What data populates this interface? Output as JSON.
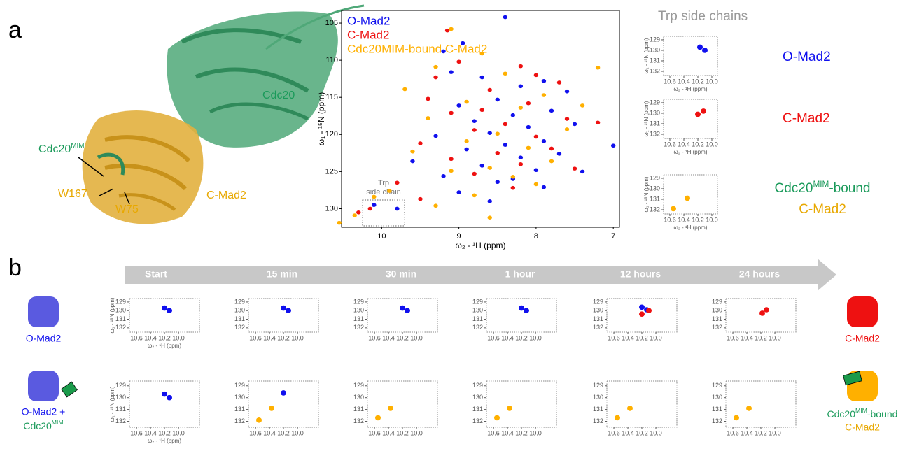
{
  "panel_labels": [
    "a",
    "b"
  ],
  "structure": {
    "cdc20": "Cdc20",
    "cdc20mim": [
      "Cdc20",
      "MIM"
    ],
    "w167": "W167",
    "w75": "W75",
    "cmad2": "C-Mad2"
  },
  "trp_title": "Trp side chains",
  "trp_labels": {
    "omad2": "O-Mad2",
    "cmad2": "C-Mad2",
    "bound": [
      "Cdc20",
      "MIM",
      "-bound"
    ],
    "bound2": "C-Mad2"
  },
  "timeline": {
    "labels": [
      "Start",
      "15 min",
      "30 min",
      "1 hour",
      "12 hours",
      "24 hours"
    ]
  },
  "row_labels": {
    "left1": "O-Mad2",
    "left2a": "O-Mad2 +",
    "left2b": [
      "Cdc20",
      "MIM"
    ],
    "right1": "C-Mad2",
    "right2a": [
      "Cdc20",
      "MIM",
      "-bound"
    ],
    "right2b": "C-Mad2"
  },
  "chart_data": [
    {
      "type": "scatter",
      "xlabel": "ω₂ - ¹H (ppm)",
      "ylabel": "ω₁ - ¹⁵N (ppm)",
      "annotation": [
        "Trp",
        "side chain"
      ],
      "xlim": [
        10.52,
        6.92
      ],
      "ylim": [
        132.5,
        103.3
      ],
      "xticks": [
        10,
        9,
        8,
        7
      ],
      "yticks": [
        105,
        110,
        115,
        120,
        125,
        130
      ],
      "series": [
        {
          "name": "O-Mad2",
          "color": "#1010ee",
          "x": [
            8.4,
            8.95,
            9.2,
            9.1,
            8.7,
            7.9,
            8.2,
            7.6,
            8.5,
            9.0,
            7.8,
            8.3,
            8.8,
            7.5,
            8.1,
            8.6,
            9.3,
            7.9,
            8.4,
            8.9,
            7.7,
            8.2,
            9.6,
            8.7,
            8.0,
            7.4,
            9.2,
            8.5,
            7.9,
            10.1,
            9.8,
            8.6,
            9.0,
            7.0,
            8.3
          ],
          "values": [
            104.2,
            107.7,
            108.8,
            111.6,
            112.3,
            112.8,
            113.5,
            114.2,
            115.3,
            116.1,
            116.8,
            117.4,
            118.2,
            118.6,
            119.0,
            119.8,
            120.2,
            120.9,
            121.4,
            122.0,
            122.6,
            123.1,
            123.6,
            124.2,
            124.8,
            125.0,
            125.6,
            126.4,
            127.1,
            129.5,
            130.0,
            129.0,
            127.8,
            121.5,
            126.0
          ]
        },
        {
          "name": "C-Mad2",
          "color": "#ee1111",
          "x": [
            9.15,
            9.0,
            8.2,
            9.3,
            7.7,
            8.6,
            8.1,
            9.1,
            7.6,
            8.4,
            8.8,
            8.0,
            9.5,
            7.8,
            8.5,
            9.1,
            8.2,
            7.5,
            8.8,
            9.8,
            8.3,
            9.5,
            10.15,
            10.3,
            7.2,
            8.7,
            8.0,
            9.4
          ],
          "values": [
            106.0,
            110.2,
            110.8,
            112.3,
            113.0,
            114.0,
            115.8,
            117.1,
            117.9,
            118.6,
            119.4,
            120.3,
            121.2,
            121.9,
            122.5,
            123.3,
            124.0,
            124.6,
            125.3,
            126.5,
            127.2,
            128.7,
            130.0,
            130.5,
            118.4,
            116.7,
            112.0,
            115.2
          ]
        },
        {
          "name": "Cdc20MIM-bound C-Mad2",
          "color": "#ffb000",
          "x": [
            9.1,
            8.7,
            9.3,
            8.4,
            7.9,
            8.9,
            8.2,
            9.4,
            7.6,
            8.5,
            8.9,
            8.1,
            9.6,
            7.8,
            8.6,
            9.1,
            8.3,
            9.9,
            8.8,
            10.35,
            10.55,
            9.3,
            7.4,
            10.1,
            8.0,
            7.2,
            9.7,
            8.6
          ],
          "values": [
            105.8,
            109.1,
            110.9,
            111.8,
            114.7,
            115.6,
            116.4,
            117.8,
            119.3,
            119.9,
            120.9,
            121.8,
            122.3,
            123.6,
            124.5,
            124.9,
            125.7,
            127.6,
            128.2,
            130.9,
            131.9,
            129.6,
            116.1,
            128.4,
            126.7,
            111.0,
            113.9,
            131.2
          ]
        }
      ]
    },
    {
      "type": "scatter",
      "xlabel": "ω₂ - ¹H (ppm)",
      "ylabel": "ω₁ - ¹⁵N (ppm)",
      "xlim": [
        10.69,
        9.92
      ],
      "ylim": [
        132.4,
        128.67
      ],
      "xticks": [
        10.6,
        10.4,
        10.2,
        {
          "value": 10,
          "label": "10.0"
        }
      ],
      "yticks": [
        129,
        130,
        131,
        132
      ],
      "series": [
        {
          "color": "#1010ee",
          "x": [
            10.17,
            10.1
          ],
          "values": [
            129.7,
            130.0
          ]
        }
      ]
    },
    {
      "type": "scatter",
      "xlabel": "ω₂ - ¹H (ppm)",
      "ylabel": "ω₁ - ¹⁵N (ppm)",
      "xlim": [
        10.69,
        9.92
      ],
      "ylim": [
        132.4,
        128.67
      ],
      "xticks": [
        10.6,
        10.4,
        10.2,
        {
          "value": 10,
          "label": "10.0"
        }
      ],
      "yticks": [
        129,
        130,
        131,
        132
      ],
      "series": [
        {
          "color": "#ee1111",
          "x": [
            10.12,
            10.2
          ],
          "values": [
            129.8,
            130.1
          ]
        }
      ]
    },
    {
      "type": "scatter",
      "xlabel": "ω₂ - ¹H (ppm)",
      "ylabel": "ω₁ - ¹⁵N (ppm)",
      "xlim": [
        10.69,
        9.92
      ],
      "ylim": [
        132.4,
        128.67
      ],
      "xticks": [
        10.6,
        10.4,
        10.2,
        {
          "value": 10,
          "label": "10.0"
        }
      ],
      "yticks": [
        129,
        130,
        131,
        132
      ],
      "series": [
        {
          "color": "#ffb000",
          "x": [
            10.35,
            10.55
          ],
          "values": [
            130.9,
            131.9
          ]
        }
      ]
    },
    {
      "type": "scatter",
      "xlabel": "ω₂ - ¹H (ppm)",
      "ylabel": "ω₁ - ¹⁵N (ppm)",
      "xlim": [
        10.7,
        9.7
      ],
      "ylim": [
        132.5,
        128.6
      ],
      "xticks": [
        10.6,
        10.4,
        10.2,
        {
          "value": 10,
          "label": "10.0"
        }
      ],
      "yticks": [
        129,
        130,
        131,
        132
      ],
      "series": [
        {
          "color": "#1010ee",
          "x": [
            10.2,
            10.13
          ],
          "values": [
            129.7,
            130.0
          ]
        }
      ]
    },
    {
      "type": "scatter",
      "xlim": [
        10.7,
        9.7
      ],
      "ylim": [
        132.5,
        128.6
      ],
      "xticks": [
        10.6,
        10.4,
        10.2,
        {
          "value": 10,
          "label": "10.0"
        }
      ],
      "yticks": [
        129,
        130,
        131,
        132
      ],
      "series": [
        {
          "color": "#1010ee",
          "x": [
            10.2,
            10.13
          ],
          "values": [
            129.7,
            130.0
          ]
        }
      ]
    },
    {
      "type": "scatter",
      "xlim": [
        10.7,
        9.7
      ],
      "ylim": [
        132.5,
        128.6
      ],
      "xticks": [
        10.6,
        10.4,
        10.2,
        {
          "value": 10,
          "label": "10.0"
        }
      ],
      "yticks": [
        129,
        130,
        131,
        132
      ],
      "series": [
        {
          "color": "#1010ee",
          "x": [
            10.2,
            10.13
          ],
          "values": [
            129.7,
            130.0
          ]
        }
      ]
    },
    {
      "type": "scatter",
      "xlim": [
        10.7,
        9.7
      ],
      "ylim": [
        132.5,
        128.6
      ],
      "xticks": [
        10.6,
        10.4,
        10.2,
        {
          "value": 10,
          "label": "10.0"
        }
      ],
      "yticks": [
        129,
        130,
        131,
        132
      ],
      "series": [
        {
          "color": "#1010ee",
          "x": [
            10.2,
            10.13
          ],
          "values": [
            129.7,
            130.0
          ]
        }
      ]
    },
    {
      "type": "scatter",
      "xlim": [
        10.7,
        9.7
      ],
      "ylim": [
        132.5,
        128.6
      ],
      "xticks": [
        10.6,
        10.4,
        10.2,
        {
          "value": 10,
          "label": "10.0"
        }
      ],
      "yticks": [
        129,
        130,
        131,
        132
      ],
      "series": [
        {
          "color": "#1010ee",
          "x": [
            10.2,
            10.13
          ],
          "values": [
            129.6,
            129.9
          ]
        },
        {
          "color": "#ee1111",
          "x": [
            10.2,
            10.1
          ],
          "values": [
            130.4,
            130.0
          ]
        }
      ]
    },
    {
      "type": "scatter",
      "xlim": [
        10.7,
        9.7
      ],
      "ylim": [
        132.5,
        128.6
      ],
      "xticks": [
        10.6,
        10.4,
        10.2,
        {
          "value": 10,
          "label": "10.0"
        }
      ],
      "yticks": [
        129,
        130,
        131,
        132
      ],
      "series": [
        {
          "color": "#ee1111",
          "x": [
            10.18,
            10.12
          ],
          "values": [
            130.3,
            129.9
          ]
        }
      ]
    },
    {
      "type": "scatter",
      "xlabel": "ω₂ - ¹H (ppm)",
      "ylabel": "ω₁ - ¹⁵N (ppm)",
      "xlim": [
        10.7,
        9.7
      ],
      "ylim": [
        132.5,
        128.6
      ],
      "xticks": [
        10.6,
        10.4,
        10.2,
        {
          "value": 10,
          "label": "10.0"
        }
      ],
      "yticks": [
        129,
        130,
        131,
        132
      ],
      "series": [
        {
          "color": "#1010ee",
          "x": [
            10.2,
            10.13
          ],
          "values": [
            129.7,
            130.0
          ]
        }
      ]
    },
    {
      "type": "scatter",
      "xlim": [
        10.7,
        9.7
      ],
      "ylim": [
        132.5,
        128.6
      ],
      "xticks": [
        10.6,
        10.4,
        10.2,
        {
          "value": 10,
          "label": "10.0"
        }
      ],
      "yticks": [
        129,
        130,
        131,
        132
      ],
      "series": [
        {
          "color": "#1010ee",
          "x": [
            10.2
          ],
          "values": [
            129.6
          ]
        },
        {
          "color": "#ffb000",
          "x": [
            10.37,
            10.55
          ],
          "values": [
            130.9,
            131.9
          ]
        }
      ]
    },
    {
      "type": "scatter",
      "xlim": [
        10.7,
        9.7
      ],
      "ylim": [
        132.5,
        128.6
      ],
      "xticks": [
        10.6,
        10.4,
        10.2,
        {
          "value": 10,
          "label": "10.0"
        }
      ],
      "yticks": [
        129,
        130,
        131,
        132
      ],
      "series": [
        {
          "color": "#ffb000",
          "x": [
            10.37,
            10.55
          ],
          "values": [
            130.9,
            131.7
          ]
        }
      ]
    },
    {
      "type": "scatter",
      "xlim": [
        10.7,
        9.7
      ],
      "ylim": [
        132.5,
        128.6
      ],
      "xticks": [
        10.6,
        10.4,
        10.2,
        {
          "value": 10,
          "label": "10.0"
        }
      ],
      "yticks": [
        129,
        130,
        131,
        132
      ],
      "series": [
        {
          "color": "#ffb000",
          "x": [
            10.37,
            10.55
          ],
          "values": [
            130.9,
            131.7
          ]
        }
      ]
    },
    {
      "type": "scatter",
      "xlim": [
        10.7,
        9.7
      ],
      "ylim": [
        132.5,
        128.6
      ],
      "xticks": [
        10.6,
        10.4,
        10.2,
        {
          "value": 10,
          "label": "10.0"
        }
      ],
      "yticks": [
        129,
        130,
        131,
        132
      ],
      "series": [
        {
          "color": "#ffb000",
          "x": [
            10.37,
            10.55
          ],
          "values": [
            130.9,
            131.7
          ]
        }
      ]
    },
    {
      "type": "scatter",
      "xlim": [
        10.7,
        9.7
      ],
      "ylim": [
        132.5,
        128.6
      ],
      "xticks": [
        10.6,
        10.4,
        10.2,
        {
          "value": 10,
          "label": "10.0"
        }
      ],
      "yticks": [
        129,
        130,
        131,
        132
      ],
      "series": [
        {
          "color": "#ffb000",
          "x": [
            10.37,
            10.55
          ],
          "values": [
            130.9,
            131.7
          ]
        }
      ]
    }
  ]
}
